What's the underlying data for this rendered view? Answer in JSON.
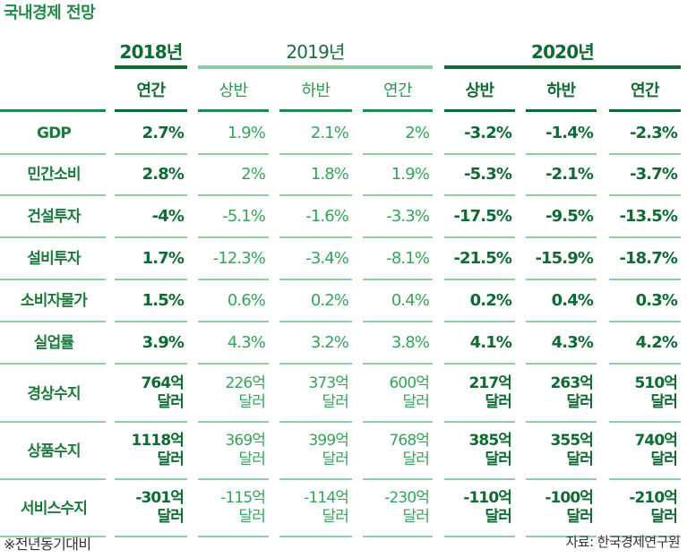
{
  "title": "국내경제 전망",
  "years": [
    "2018년",
    "2019년",
    "2020년"
  ],
  "subheaders": [
    "연간",
    "상반",
    "하반",
    "연간",
    "상반",
    "하반",
    "연간"
  ],
  "rows": [
    {
      "label": "GDP",
      "cells": [
        "2.7%",
        "1.9%",
        "2.1%",
        "2%",
        "-3.2%",
        "-1.4%",
        "-2.3%"
      ]
    },
    {
      "label": "민간소비",
      "cells": [
        "2.8%",
        "2%",
        "1.8%",
        "1.9%",
        "-5.3%",
        "-2.1%",
        "-3.7%"
      ]
    },
    {
      "label": "건설투자",
      "cells": [
        "-4%",
        "-5.1%",
        "-1.6%",
        "-3.3%",
        "-17.5%",
        "-9.5%",
        "-13.5%"
      ]
    },
    {
      "label": "설비투자",
      "cells": [
        "1.7%",
        "-12.3%",
        "-3.4%",
        "-8.1%",
        "-21.5%",
        "-15.9%",
        "-18.7%"
      ]
    },
    {
      "label": "소비자물가",
      "cells": [
        "1.5%",
        "0.6%",
        "0.2%",
        "0.4%",
        "0.2%",
        "0.4%",
        "0.3%"
      ]
    },
    {
      "label": "실업률",
      "cells": [
        "3.9%",
        "4.3%",
        "3.2%",
        "3.8%",
        "4.1%",
        "4.3%",
        "4.2%"
      ]
    },
    {
      "label": "경상수지",
      "cells": [
        "764억|달러",
        "226억|달러",
        "373억|달러",
        "600억|달러",
        "217억|달러",
        "263억|달러",
        "510억|달러"
      ]
    },
    {
      "label": "상품수지",
      "cells": [
        "1118억|달러",
        "369억|달러",
        "399억|달러",
        "768억|달러",
        "385억|달러",
        "355억|달러",
        "740억|달러"
      ]
    },
    {
      "label": "서비스수지",
      "cells": [
        "-301억|달러",
        "-115억|달러",
        "-114억|달러",
        "-230억|달러",
        "-110억|달러",
        "-100억|달러",
        "-210억|달러"
      ]
    }
  ],
  "footnote": "※전년동기대비",
  "source": "자료: 한국경제연구원",
  "colors": {
    "dark": "#0f6b33",
    "mid": "#1d8a47",
    "light": "#8fcf9f"
  }
}
